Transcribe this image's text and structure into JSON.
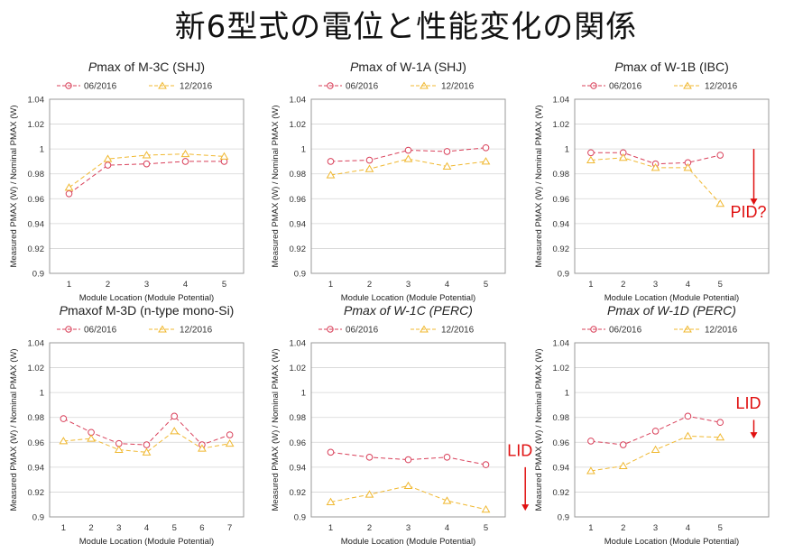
{
  "page_title": "新6型式の電位と性能変化の関係",
  "colors": {
    "series_0616": "#d9405a",
    "series_1216": "#f0b830",
    "annotation": "#e01010",
    "plot_border": "#999999"
  },
  "chart_data": [
    {
      "type": "line",
      "title_prefix": "P",
      "title_rest": "max of M-3C (SHJ)",
      "xlabel": "Module Location (Module Potential)",
      "ylabel": "Measured PMAX (W) / Nominal PMAX (W)",
      "x": [
        1,
        2,
        3,
        4,
        5
      ],
      "x_tick_labels": [
        "1",
        "2",
        "3",
        "4",
        "5"
      ],
      "x_ticks_count": 5,
      "y_tick_labels": [
        "0.9",
        "0.92",
        "0.94",
        "0.96",
        "0.98",
        "1",
        "1.02",
        "1.04"
      ],
      "ylim": [
        0.9,
        1.04
      ],
      "series": [
        {
          "name": "06/2016",
          "marker": "circle",
          "values": [
            0.964,
            0.987,
            0.988,
            0.99,
            0.99
          ]
        },
        {
          "name": "12/2016",
          "marker": "triangle",
          "values": [
            0.969,
            0.992,
            0.995,
            0.996,
            0.994
          ]
        }
      ],
      "annotation": null
    },
    {
      "type": "line",
      "title_prefix": "P",
      "title_rest": "max of W-1A (SHJ)",
      "xlabel": "Module Location (Module Potential)",
      "ylabel": "Measured PMAX (W) / Nominal PMAX (W)",
      "x": [
        1,
        2,
        3,
        4,
        5
      ],
      "x_tick_labels": [
        "1",
        "2",
        "3",
        "4",
        "5"
      ],
      "x_ticks_count": 5,
      "y_tick_labels": [
        "0.9",
        "0.92",
        "0.94",
        "0.96",
        "0.98",
        "1",
        "1.02",
        "1.04"
      ],
      "ylim": [
        0.9,
        1.04
      ],
      "series": [
        {
          "name": "06/2016",
          "marker": "circle",
          "values": [
            0.99,
            0.991,
            0.999,
            0.998,
            1.001
          ]
        },
        {
          "name": "12/2016",
          "marker": "triangle",
          "values": [
            0.979,
            0.984,
            0.992,
            0.986,
            0.99
          ]
        }
      ],
      "annotation": null
    },
    {
      "type": "line",
      "title_prefix": "P",
      "title_rest": "max of W-1B (IBC)",
      "xlabel": "Module Location (Module Potential)",
      "ylabel": "Measured PMAX (W) / Nominal PMAX (W)",
      "x": [
        1,
        2,
        3,
        4,
        5
      ],
      "x_tick_labels": [
        "1",
        "2",
        "3",
        "4",
        "5"
      ],
      "x_ticks_count": 6,
      "y_tick_labels": [
        "0.9",
        "0.92",
        "0.94",
        "0.96",
        "0.98",
        "1",
        "1.02",
        "1.04"
      ],
      "ylim": [
        0.9,
        1.04
      ],
      "series": [
        {
          "name": "06/2016",
          "marker": "circle",
          "values": [
            0.997,
            0.997,
            0.988,
            0.989,
            0.995
          ]
        },
        {
          "name": "12/2016",
          "marker": "triangle",
          "values": [
            0.991,
            0.993,
            0.985,
            0.985,
            0.956
          ]
        }
      ],
      "annotation": {
        "text": "PID?",
        "arrow_y": [
          1.0,
          0.955
        ],
        "text_y": 0.945
      }
    },
    {
      "type": "line",
      "title_prefix": "P",
      "title_rest": "maxof M-3D (n-type mono-Si)",
      "xlabel": "Module Location (Module Potential)",
      "ylabel": "Measured PMAX (W) / Nominal PMAX (W)",
      "x": [
        1,
        2,
        3,
        4,
        5,
        6,
        7
      ],
      "x_tick_labels": [
        "1",
        "2",
        "3",
        "4",
        "5",
        "6",
        "7"
      ],
      "x_ticks_count": 7,
      "y_tick_labels": [
        "0.9",
        "0.92",
        "0.94",
        "0.96",
        "0.98",
        "1",
        "1.02",
        "1.04"
      ],
      "ylim": [
        0.9,
        1.04
      ],
      "series": [
        {
          "name": "06/2016",
          "marker": "circle",
          "values": [
            0.979,
            0.968,
            0.959,
            0.958,
            0.981,
            0.958,
            0.966
          ]
        },
        {
          "name": "12/2016",
          "marker": "triangle",
          "values": [
            0.961,
            0.963,
            0.954,
            0.952,
            0.969,
            0.955,
            0.959
          ]
        }
      ],
      "annotation": null
    },
    {
      "type": "line",
      "title_prefix": "P",
      "title_rest": "max of W-1C (PERC)",
      "title_italic_rest": true,
      "xlabel": "Module Location (Module Potential)",
      "ylabel": "Measured PMAX (W) / Nominal PMAX (W)",
      "x": [
        1,
        2,
        3,
        4,
        5
      ],
      "x_tick_labels": [
        "1",
        "2",
        "3",
        "4",
        "5"
      ],
      "x_ticks_count": 5,
      "y_tick_labels": [
        "0.9",
        "0.92",
        "0.94",
        "0.96",
        "0.98",
        "1",
        "1.02",
        "1.04"
      ],
      "ylim": [
        0.9,
        1.04
      ],
      "series": [
        {
          "name": "06/2016",
          "marker": "circle",
          "values": [
            0.952,
            0.948,
            0.946,
            0.948,
            0.942
          ]
        },
        {
          "name": "12/2016",
          "marker": "triangle",
          "values": [
            0.912,
            0.918,
            0.925,
            0.913,
            0.906
          ]
        }
      ],
      "annotation": {
        "text": "LID",
        "arrow_y": [
          0.94,
          0.905
        ],
        "text_y": 0.949
      }
    },
    {
      "type": "line",
      "title_prefix": "P",
      "title_rest": "max of W-1D (PERC)",
      "title_italic_rest": true,
      "xlabel": "Module Location (Module Potential)",
      "ylabel": "Measured PMAX (W) / Nominal PMAX (W)",
      "x": [
        1,
        2,
        3,
        4,
        5
      ],
      "x_tick_labels": [
        "1",
        "2",
        "3",
        "4",
        "5"
      ],
      "x_ticks_count": 6,
      "y_tick_labels": [
        "0.9",
        "0.92",
        "0.94",
        "0.96",
        "0.98",
        "1",
        "1.02",
        "1.04"
      ],
      "ylim": [
        0.9,
        1.04
      ],
      "series": [
        {
          "name": "06/2016",
          "marker": "circle",
          "values": [
            0.961,
            0.958,
            0.969,
            0.981,
            0.976
          ]
        },
        {
          "name": "12/2016",
          "marker": "triangle",
          "values": [
            0.937,
            0.941,
            0.954,
            0.965,
            0.964
          ]
        }
      ],
      "annotation": {
        "text": "LID",
        "arrow_y": [
          0.978,
          0.963
        ],
        "text_y": 0.987
      }
    }
  ]
}
